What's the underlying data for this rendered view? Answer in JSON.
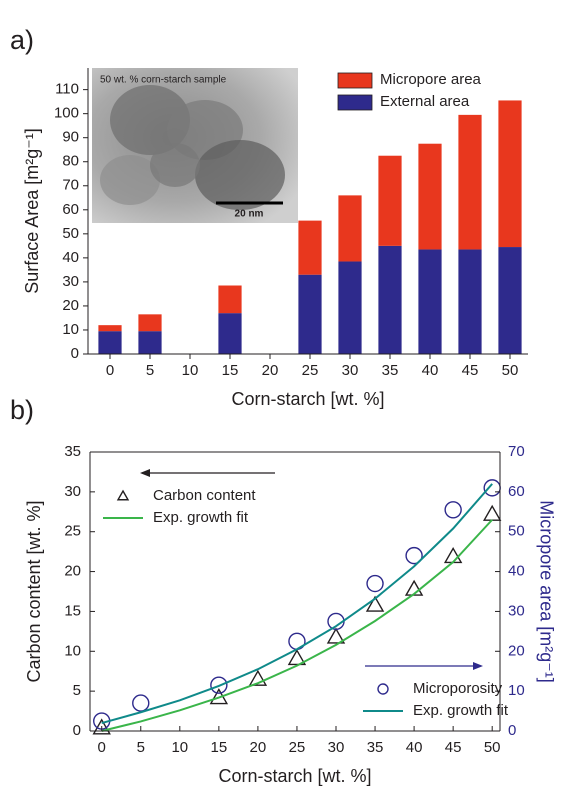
{
  "chart_data": [
    {
      "type": "bar",
      "panel_label": "a)",
      "x_label": "Corn-starch [wt. %]",
      "y_label": "Surface Area [m²g⁻¹]",
      "inset_label": "50 wt. % corn-starch sample",
      "scale_bar_label": "20 nm",
      "x": [
        0,
        5,
        15,
        25,
        30,
        35,
        40,
        45,
        50
      ],
      "series": [
        {
          "name": "External area",
          "color": "#2e2a8c",
          "values": [
            9.5,
            9.5,
            17,
            33,
            38.5,
            45,
            43.5,
            43.5,
            44.5
          ]
        },
        {
          "name": "Micropore area",
          "color": "#e8371e",
          "values": [
            2.5,
            7,
            11.5,
            22.5,
            27.5,
            37.5,
            44,
            56,
            61
          ]
        }
      ],
      "stacked": true,
      "legend": "upper right",
      "xlim": [
        -2.75,
        52.25
      ],
      "xticks": [
        0,
        5,
        10,
        15,
        20,
        25,
        30,
        35,
        40,
        45,
        50
      ],
      "ylim": [
        0,
        119
      ],
      "yticks": [
        0,
        10,
        20,
        30,
        40,
        50,
        60,
        70,
        80,
        90,
        100,
        110
      ]
    },
    {
      "type": "scatter",
      "panel_label": "b)",
      "x_label": "Corn-starch [wt. %]",
      "y_label": "Carbon content [wt. %]",
      "y2_label": "Micropore area [m²g⁻¹]",
      "series": [
        {
          "name": "Carbon content",
          "marker": "triangle",
          "color": "#231f20",
          "legend_loc": "upper left",
          "x": [
            0,
            15,
            20,
            25,
            30,
            35,
            40,
            45,
            50
          ],
          "values": [
            0.4,
            4.2,
            6.5,
            9.1,
            11.8,
            15.8,
            17.8,
            21.9,
            27.2
          ]
        },
        {
          "name": "Exp. growth fit",
          "marker": "line",
          "color": "#3ab54a",
          "legend_loc": "upper left",
          "x": [
            0,
            5,
            10,
            15,
            20,
            25,
            30,
            35,
            40,
            45,
            50
          ],
          "values": [
            0,
            1.2,
            2.6,
            4.2,
            6,
            8.2,
            10.8,
            13.8,
            17.2,
            21.2,
            26.5
          ]
        },
        {
          "name": "Microporosity",
          "marker": "circle",
          "color": "#2e2a8c",
          "axis": "y2",
          "legend_loc": "lower right",
          "x": [
            0,
            5,
            15,
            25,
            30,
            35,
            40,
            45,
            50
          ],
          "values": [
            2.5,
            7,
            11.5,
            22.5,
            27.5,
            37,
            44,
            55.5,
            61
          ]
        },
        {
          "name": "Exp. growth fit",
          "marker": "line",
          "color": "#0f8a8a",
          "axis": "y2",
          "legend_loc": "lower right",
          "x": [
            0,
            5,
            10,
            15,
            20,
            25,
            30,
            35,
            40,
            45,
            50
          ],
          "values": [
            2,
            4.7,
            7.7,
            11.3,
            15.5,
            20.5,
            26.3,
            33.2,
            41.3,
            50.8,
            62
          ]
        }
      ],
      "xlim": [
        -1.5,
        51
      ],
      "xticks": [
        0,
        5,
        10,
        15,
        20,
        25,
        30,
        35,
        40,
        45,
        50
      ],
      "ylim": [
        0,
        35
      ],
      "yticks": [
        0,
        5,
        10,
        15,
        20,
        25,
        30,
        35
      ],
      "y2lim": [
        0,
        70
      ],
      "y2ticks": [
        0,
        10,
        20,
        30,
        40,
        50,
        60,
        70
      ]
    }
  ]
}
